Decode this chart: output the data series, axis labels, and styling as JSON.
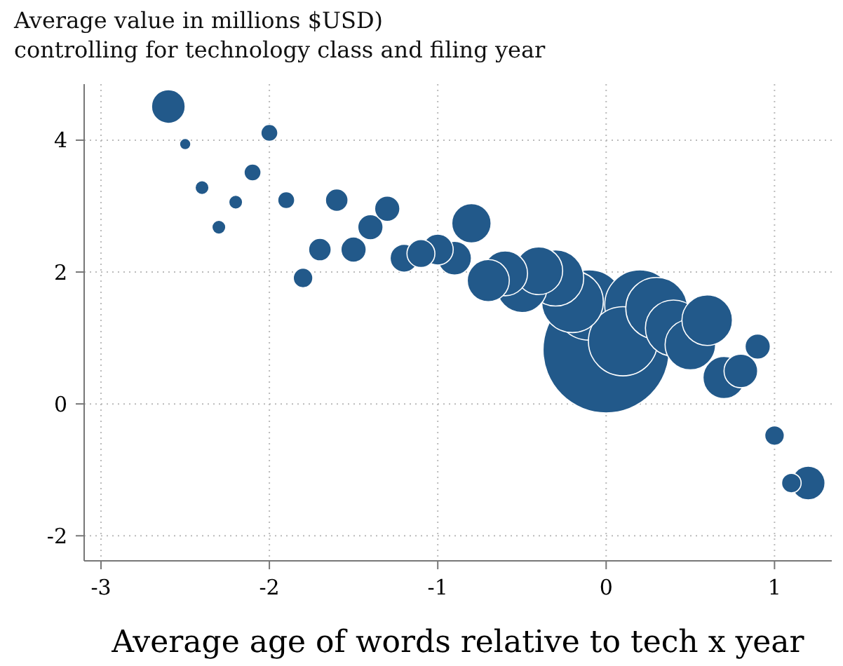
{
  "chart_data": {
    "type": "bubble",
    "title": "Average value in millions $USD)",
    "subtitle": "controlling for technology class and filing year",
    "xlabel": "Average age of words relative to tech x year",
    "x": [
      -2.6,
      -2.5,
      -2.4,
      -2.3,
      -2.2,
      -2.1,
      -2.0,
      -1.9,
      -1.8,
      -1.7,
      -1.6,
      -1.5,
      -1.4,
      -1.3,
      -1.2,
      -1.1,
      -1.0,
      -0.9,
      -0.8,
      -0.7,
      -0.6,
      -0.5,
      -0.4,
      -0.3,
      -0.2,
      -0.1,
      0,
      0.1,
      0.2,
      0.3,
      0.4,
      0.5,
      0.6,
      0.7,
      0.8,
      0.9,
      1.0,
      1.1,
      1.2
    ],
    "values": [
      4.51,
      3.94,
      3.28,
      2.68,
      3.06,
      3.51,
      4.11,
      3.09,
      1.91,
      2.34,
      3.09,
      2.34,
      2.68,
      2.96,
      2.21,
      2.28,
      2.34,
      2.21,
      2.74,
      1.87,
      1.98,
      1.77,
      2.02,
      1.91,
      1.55,
      1.5,
      0.82,
      0.95,
      1.5,
      1.45,
      1.15,
      0.9,
      1.27,
      0.4,
      0.5,
      0.87,
      -0.48,
      -1.2,
      -1.2
    ],
    "sizes": [
      0.071,
      0.008,
      0.012,
      0.012,
      0.012,
      0.018,
      0.018,
      0.018,
      0.024,
      0.032,
      0.032,
      0.04,
      0.04,
      0.04,
      0.049,
      0.049,
      0.06,
      0.071,
      0.097,
      0.111,
      0.126,
      0.16,
      0.143,
      0.198,
      0.239,
      0.309,
      1,
      0.3,
      0.309,
      0.239,
      0.198,
      0.16,
      0.16,
      0.111,
      0.071,
      0.04,
      0.024,
      0.024,
      0.071
    ],
    "color": "#22598a",
    "xlim": [
      -3.1,
      1.34
    ],
    "ylim": [
      -2.38,
      4.85
    ],
    "xticks": [
      -3,
      -2,
      -1,
      0,
      1
    ],
    "yticks": [
      -2,
      0,
      2,
      4
    ],
    "grid": true
  }
}
